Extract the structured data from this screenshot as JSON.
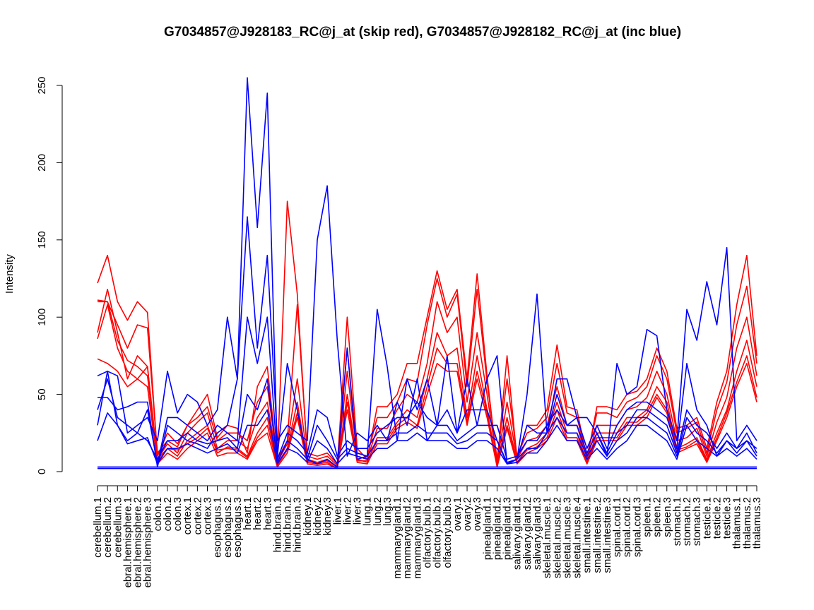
{
  "chart_data": {
    "type": "line",
    "title": "G7034857@J928183_RC@j_at (skip red), G7034857@J928182_RC@j_at (inc blue)",
    "xlabel": "",
    "ylabel": "Intensity",
    "ylim": [
      0,
      250
    ],
    "yticks": [
      0,
      50,
      100,
      150,
      200,
      250
    ],
    "grid": false,
    "legend": "none",
    "colors": {
      "skip": "#ff0000",
      "inc": "#0000ff"
    },
    "categories": [
      "cerebellum.1",
      "cerebellum.2",
      "cerebellum.3",
      "cerebral.hemisphere.1",
      "cerebral.hemisphere.2",
      "cerebral.hemisphere.3",
      "colon.1",
      "colon.2",
      "colon.3",
      "cortex.1",
      "cortex.2",
      "cortex.3",
      "esophagus.1",
      "esophagus.2",
      "esophagus.3",
      "heart.1",
      "heart.2",
      "heart.3",
      "hind.brain.1",
      "hind.brain.2",
      "hind.brain.3",
      "kidney.1",
      "kidney.2",
      "kidney.3",
      "liver.1",
      "liver.2",
      "liver.3",
      "lung.1",
      "lung.2",
      "lung.3",
      "mammarygland.1",
      "mammarygland.2",
      "mammarygland.3",
      "olfactory.bulb.1",
      "olfactory.bulb.2",
      "olfactory.bulb.3",
      "ovary.1",
      "ovary.2",
      "ovary.3",
      "pinealgland.1",
      "pinealgland.2",
      "pinealgland.3",
      "salivary.gland.1",
      "salivary.gland.2",
      "salivary.gland.3",
      "skeletal.muscle.1",
      "skeletal.muscle.2",
      "skeletal.muscle.3",
      "skeletal.muscle.4",
      "small.intestine.1",
      "small.intestine.2",
      "small.intestine.3",
      "spinal.cord.1",
      "spinal.cord.2",
      "spinal.cord.3",
      "spleen.1",
      "spleen.2",
      "spleen.3",
      "stomach.1",
      "stomach.2",
      "stomach.3",
      "testicle.1",
      "testicle.2",
      "testicle.3",
      "thalamus.1",
      "thalamus.2",
      "thalamus.3"
    ],
    "tick_labels_display": [
      "cerebellum.1",
      "cerebellum.2",
      "cerebellum.3",
      "ebral.hemisphere.1",
      "ebral.hemisphere.2",
      "ebral.hemisphere.3",
      "colon.1",
      "colon.2",
      "colon.3",
      "cortex.1",
      "cortex.2",
      "cortex.3",
      "esophagus.1",
      "esophagus.2",
      "esophagus.3",
      "heart.1",
      "heart.2",
      "heart.3",
      "hind.brain.1",
      "hind.brain.2",
      "hind.brain.3",
      "kidney.1",
      "kidney.2",
      "kidney.3",
      "liver.1",
      "liver.2",
      "liver.3",
      "lung.1",
      "lung.2",
      "lung.3",
      "mammarygland.1",
      "mammarygland.2",
      "mammarygland.3",
      "olfactory.bulb.1",
      "olfactory.bulb.2",
      "olfactory.bulb.3",
      "ovary.1",
      "ovary.2",
      "ovary.3",
      "pinealgland.1",
      "pinealgland.2",
      "pinealgland.3",
      "salivary.gland.1",
      "salivary.gland.2",
      "salivary.gland.3",
      "skeletal.muscle.1",
      "skeletal.muscle.2",
      "skeletal.muscle.3",
      "skeletal.muscle.4",
      "small.intestine.1",
      "small.intestine.2",
      "small.intestine.3",
      "spinal.cord.1",
      "spinal.cord.2",
      "spinal.cord.3",
      "spleen.1",
      "spleen.2",
      "spleen.3",
      "stomach.1",
      "stomach.2",
      "stomach.3",
      "testicle.1",
      "testicle.2",
      "testicle.3",
      "thalamus.1",
      "thalamus.2",
      "thalamus.3"
    ],
    "series": [
      {
        "group": "skip",
        "values": [
          122,
          140,
          110,
          98,
          110,
          103,
          10,
          25,
          18,
          30,
          40,
          50,
          22,
          30,
          28,
          12,
          55,
          68,
          6,
          175,
          115,
          10,
          8,
          10,
          4,
          100,
          15,
          8,
          42,
          42,
          50,
          70,
          70,
          100,
          130,
          105,
          118,
          60,
          128,
          62,
          5,
          75,
          8,
          30,
          30,
          40,
          82,
          42,
          40,
          8,
          42,
          42,
          40,
          50,
          52,
          60,
          80,
          65,
          28,
          30,
          35,
          15,
          45,
          65,
          108,
          140,
          75
        ]
      },
      {
        "group": "skip",
        "values": [
          110,
          110,
          95,
          80,
          95,
          93,
          12,
          20,
          16,
          30,
          35,
          42,
          20,
          25,
          25,
          20,
          45,
          55,
          8,
          20,
          108,
          12,
          10,
          12,
          5,
          80,
          12,
          10,
          35,
          35,
          45,
          60,
          58,
          95,
          125,
          100,
          115,
          55,
          118,
          58,
          8,
          60,
          10,
          25,
          28,
          35,
          70,
          38,
          35,
          10,
          38,
          38,
          35,
          45,
          48,
          55,
          75,
          60,
          25,
          28,
          32,
          12,
          40,
          58,
          95,
          120,
          70
        ]
      },
      {
        "group": "skip",
        "values": [
          90,
          118,
          90,
          60,
          75,
          68,
          8,
          18,
          12,
          25,
          32,
          38,
          15,
          20,
          20,
          15,
          35,
          45,
          6,
          18,
          60,
          8,
          6,
          8,
          3,
          65,
          10,
          8,
          28,
          28,
          40,
          50,
          45,
          70,
          110,
          90,
          100,
          45,
          90,
          50,
          6,
          45,
          8,
          20,
          22,
          30,
          55,
          30,
          30,
          8,
          30,
          30,
          30,
          40,
          42,
          48,
          65,
          50,
          20,
          22,
          28,
          10,
          32,
          48,
          80,
          100,
          62
        ]
      },
      {
        "group": "skip",
        "values": [
          73,
          70,
          65,
          55,
          60,
          55,
          6,
          15,
          10,
          20,
          25,
          30,
          12,
          16,
          15,
          10,
          25,
          35,
          4,
          15,
          45,
          6,
          5,
          6,
          2,
          50,
          8,
          6,
          22,
          22,
          32,
          40,
          35,
          60,
          90,
          75,
          80,
          35,
          75,
          40,
          4,
          35,
          6,
          15,
          18,
          25,
          45,
          25,
          25,
          6,
          25,
          25,
          25,
          35,
          35,
          40,
          55,
          45,
          15,
          18,
          22,
          8,
          25,
          40,
          65,
          85,
          55
        ]
      },
      {
        "group": "skip",
        "values": [
          86,
          108,
          80,
          65,
          60,
          68,
          5,
          12,
          8,
          15,
          20,
          25,
          10,
          12,
          12,
          8,
          20,
          25,
          3,
          12,
          35,
          5,
          4,
          5,
          2,
          40,
          6,
          5,
          18,
          18,
          28,
          32,
          28,
          50,
          70,
          65,
          65,
          30,
          60,
          35,
          3,
          28,
          5,
          12,
          15,
          20,
          35,
          20,
          20,
          5,
          20,
          20,
          20,
          30,
          30,
          35,
          48,
          38,
          12,
          15,
          18,
          6,
          20,
          35,
          55,
          70,
          45
        ]
      },
      {
        "group": "skip",
        "values": [
          111,
          110,
          85,
          72,
          68,
          62,
          8,
          15,
          14,
          18,
          22,
          28,
          14,
          15,
          14,
          9,
          22,
          30,
          4,
          14,
          38,
          7,
          6,
          7,
          3,
          45,
          7,
          7,
          20,
          20,
          30,
          35,
          30,
          55,
          80,
          70,
          70,
          32,
          65,
          38,
          4,
          30,
          6,
          14,
          16,
          22,
          40,
          22,
          22,
          6,
          22,
          22,
          22,
          32,
          32,
          38,
          50,
          40,
          14,
          16,
          20,
          7,
          22,
          38,
          58,
          75,
          48
        ]
      },
      {
        "group": "inc",
        "values": [
          30,
          65,
          62,
          25,
          30,
          35,
          20,
          65,
          38,
          50,
          45,
          30,
          40,
          100,
          60,
          255,
          158,
          245,
          10,
          70,
          40,
          8,
          5,
          8,
          3,
          80,
          8,
          10,
          105,
          68,
          20,
          60,
          40,
          60,
          30,
          75,
          25,
          60,
          30,
          60,
          75,
          5,
          8,
          50,
          115,
          25,
          60,
          60,
          35,
          35,
          25,
          10,
          70,
          50,
          55,
          92,
          88,
          40,
          20,
          105,
          85,
          123,
          95,
          145,
          20,
          30,
          20
        ]
      },
      {
        "group": "inc",
        "values": [
          48,
          48,
          40,
          42,
          45,
          45,
          3,
          30,
          25,
          20,
          18,
          15,
          25,
          30,
          60,
          165,
          80,
          140,
          20,
          30,
          25,
          20,
          150,
          185,
          85,
          10,
          25,
          20,
          30,
          20,
          45,
          30,
          60,
          20,
          30,
          40,
          25,
          40,
          40,
          40,
          20,
          5,
          8,
          30,
          25,
          25,
          50,
          30,
          35,
          15,
          30,
          15,
          30,
          40,
          45,
          45,
          40,
          35,
          15,
          70,
          40,
          30,
          10,
          20,
          15,
          20,
          15
        ]
      },
      {
        "group": "inc",
        "values": [
          40,
          60,
          35,
          30,
          25,
          40,
          5,
          35,
          35,
          30,
          25,
          20,
          30,
          25,
          20,
          100,
          70,
          100,
          8,
          25,
          20,
          12,
          40,
          35,
          10,
          20,
          15,
          15,
          25,
          30,
          35,
          35,
          45,
          35,
          30,
          30,
          20,
          25,
          30,
          30,
          30,
          8,
          10,
          20,
          20,
          30,
          40,
          30,
          30,
          12,
          25,
          12,
          25,
          30,
          40,
          40,
          35,
          30,
          12,
          40,
          30,
          25,
          15,
          25,
          15,
          25,
          12
        ]
      },
      {
        "group": "inc",
        "values": [
          20,
          38,
          30,
          20,
          25,
          20,
          8,
          20,
          20,
          25,
          20,
          18,
          20,
          22,
          15,
          50,
          40,
          60,
          6,
          20,
          15,
          8,
          30,
          20,
          8,
          15,
          12,
          10,
          20,
          20,
          25,
          25,
          30,
          25,
          25,
          25,
          18,
          20,
          25,
          25,
          20,
          6,
          8,
          15,
          15,
          25,
          35,
          25,
          25,
          10,
          20,
          10,
          20,
          25,
          35,
          35,
          30,
          25,
          10,
          35,
          25,
          20,
          12,
          20,
          12,
          20,
          10
        ]
      },
      {
        "group": "inc",
        "values": [
          62,
          65,
          30,
          18,
          20,
          22,
          5,
          15,
          15,
          18,
          15,
          12,
          15,
          18,
          12,
          30,
          30,
          40,
          5,
          15,
          12,
          6,
          20,
          15,
          5,
          12,
          10,
          8,
          15,
          15,
          20,
          20,
          25,
          20,
          20,
          20,
          15,
          15,
          20,
          20,
          15,
          5,
          6,
          12,
          12,
          20,
          30,
          20,
          20,
          8,
          15,
          8,
          15,
          20,
          30,
          30,
          25,
          20,
          8,
          30,
          20,
          15,
          10,
          15,
          10,
          15,
          8
        ]
      },
      {
        "group": "inc",
        "values": [
          3,
          3,
          3,
          3,
          3,
          3,
          3,
          3,
          3,
          3,
          3,
          3,
          3,
          3,
          3,
          3,
          3,
          3,
          3,
          3,
          3,
          3,
          3,
          3,
          3,
          3,
          3,
          3,
          3,
          3,
          3,
          3,
          3,
          3,
          3,
          3,
          3,
          3,
          3,
          3,
          3,
          3,
          3,
          3,
          3,
          3,
          3,
          3,
          3,
          3,
          3,
          3,
          3,
          3,
          3,
          3,
          3,
          3,
          3,
          3,
          3,
          3,
          3,
          3,
          3,
          3,
          3
        ]
      },
      {
        "group": "inc",
        "values": [
          2,
          2,
          2,
          2,
          2,
          2,
          2,
          2,
          2,
          2,
          2,
          2,
          2,
          2,
          2,
          2,
          2,
          2,
          2,
          2,
          2,
          2,
          2,
          2,
          2,
          2,
          2,
          2,
          2,
          2,
          2,
          2,
          2,
          2,
          2,
          2,
          2,
          2,
          2,
          2,
          2,
          2,
          2,
          2,
          2,
          2,
          2,
          2,
          2,
          2,
          2,
          2,
          2,
          2,
          2,
          2,
          2,
          2,
          2,
          2,
          2,
          2,
          2,
          2,
          2,
          2,
          2
        ]
      }
    ]
  }
}
